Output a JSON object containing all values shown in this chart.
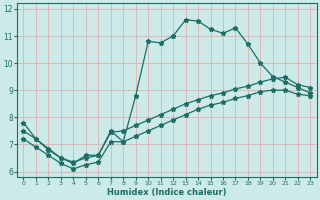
{
  "xlabel": "Humidex (Indice chaleur)",
  "bg_color": "#cceae8",
  "grid_color": "#ddb8b8",
  "line_color": "#1a6e65",
  "xlim": [
    -0.5,
    23.5
  ],
  "ylim": [
    5.8,
    12.2
  ],
  "yticks": [
    6,
    7,
    8,
    9,
    10,
    11,
    12
  ],
  "xticks": [
    0,
    1,
    2,
    3,
    4,
    5,
    6,
    7,
    8,
    9,
    10,
    11,
    12,
    13,
    14,
    15,
    16,
    17,
    18,
    19,
    20,
    21,
    22,
    23
  ],
  "line1_x": [
    0,
    1,
    2,
    3,
    4,
    5,
    6,
    7,
    8,
    9,
    10,
    11,
    12,
    13,
    14,
    15,
    16,
    17,
    18,
    19,
    20,
    21,
    22,
    23
  ],
  "line1_y": [
    7.8,
    7.2,
    6.8,
    6.5,
    6.3,
    6.6,
    6.6,
    7.5,
    7.1,
    8.8,
    10.8,
    10.75,
    11.0,
    11.6,
    11.55,
    11.25,
    11.1,
    11.3,
    10.7,
    10.0,
    9.5,
    9.3,
    9.1,
    8.9
  ],
  "line2_x": [
    0,
    1,
    2,
    3,
    4,
    5,
    6,
    7,
    8,
    9,
    10,
    11,
    12,
    13,
    14,
    15,
    16,
    17,
    18,
    19,
    20,
    21,
    22,
    23
  ],
  "line2_y": [
    7.5,
    7.2,
    6.85,
    6.5,
    6.35,
    6.5,
    6.6,
    7.45,
    7.5,
    7.7,
    7.9,
    8.1,
    8.3,
    8.5,
    8.65,
    8.8,
    8.9,
    9.05,
    9.15,
    9.3,
    9.42,
    9.48,
    9.2,
    9.1
  ],
  "line3_x": [
    0,
    1,
    2,
    3,
    4,
    5,
    6,
    7,
    8,
    9,
    10,
    11,
    12,
    13,
    14,
    15,
    16,
    17,
    18,
    19,
    20,
    21,
    22,
    23
  ],
  "line3_y": [
    7.2,
    6.9,
    6.6,
    6.3,
    6.1,
    6.25,
    6.35,
    7.1,
    7.1,
    7.3,
    7.5,
    7.7,
    7.9,
    8.1,
    8.3,
    8.45,
    8.55,
    8.7,
    8.8,
    8.95,
    9.0,
    9.0,
    8.85,
    8.8
  ],
  "marker": "*",
  "marker_size": 3.5,
  "linewidth": 0.9
}
